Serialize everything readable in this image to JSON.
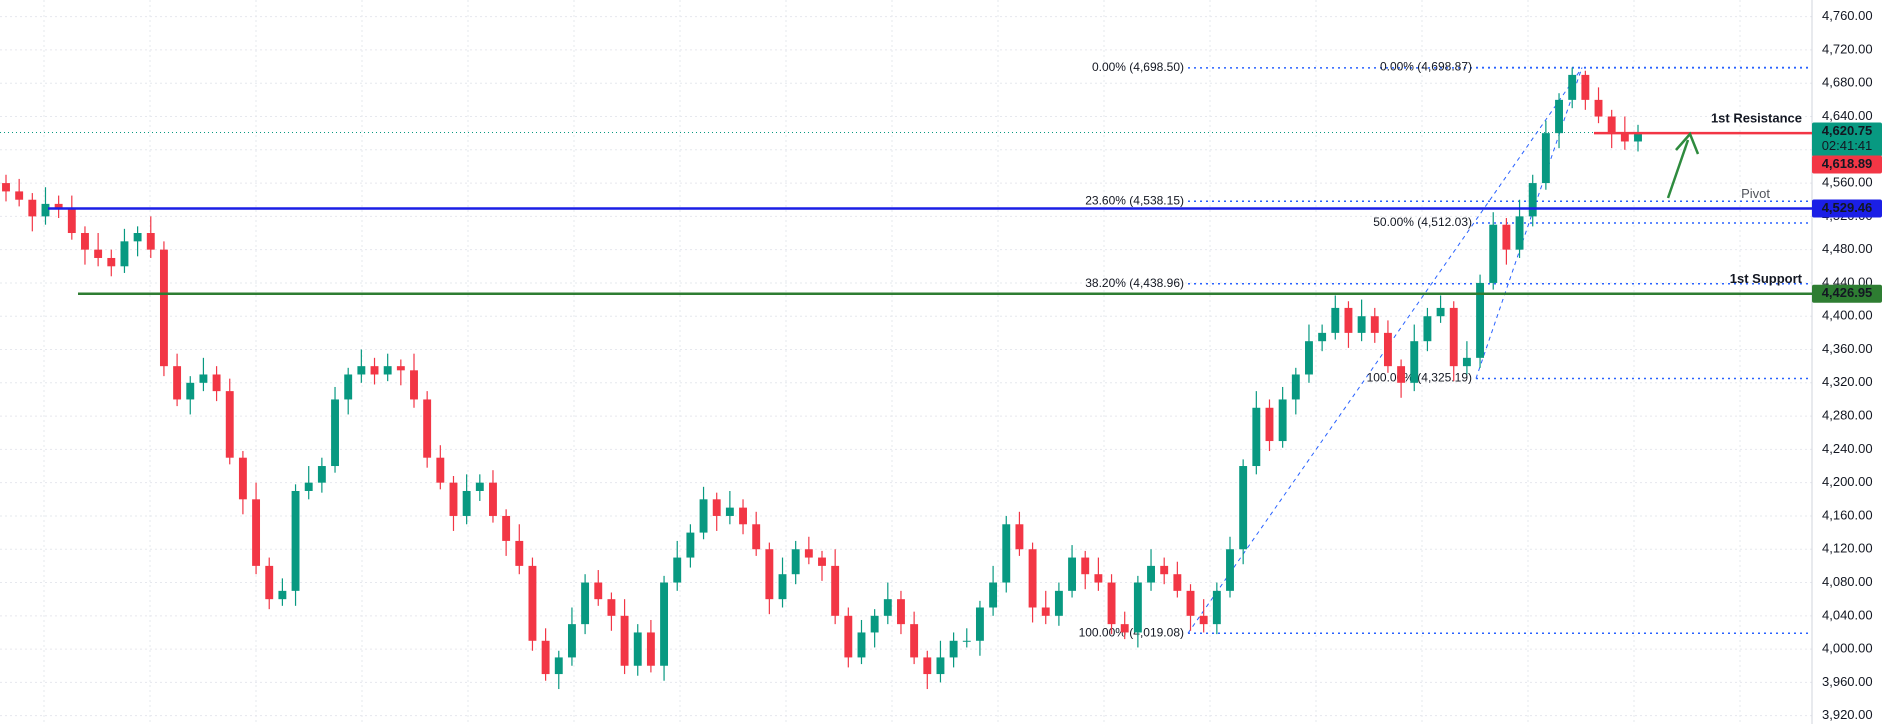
{
  "chart_data": {
    "type": "candlestick",
    "up_color": "#089981",
    "down_color": "#f23645",
    "open": [
      4560,
      4550,
      4540,
      4520,
      4535,
      4530,
      4500,
      4480,
      4470,
      4460,
      4490,
      4500,
      4480,
      4340,
      4300,
      4320,
      4330,
      4310,
      4230,
      4180,
      4100,
      4060,
      4070,
      4190,
      4200,
      4220,
      4300,
      4330,
      4340,
      4330,
      4340,
      4335,
      4300,
      4230,
      4200,
      4160,
      4190,
      4200,
      4160,
      4130,
      4100,
      4010,
      3970,
      3990,
      4030,
      4080,
      4060,
      4040,
      3980,
      4020,
      3980,
      4080,
      4110,
      4140,
      4180,
      4160,
      4170,
      4150,
      4120,
      4060,
      4090,
      4120,
      4110,
      4100,
      4040,
      3990,
      4020,
      4040,
      4060,
      4030,
      3990,
      3970,
      3990,
      4010,
      4010,
      4050,
      4080,
      4150,
      4120,
      4050,
      4040,
      4070,
      4110,
      4090,
      4080,
      4030,
      4020,
      4080,
      4100,
      4090,
      4070,
      4040,
      4030,
      4070,
      4120,
      4220,
      4290,
      4250,
      4300,
      4330,
      4370,
      4380,
      4410,
      4380,
      4400,
      4380,
      4340,
      4320,
      4370,
      4400,
      4410,
      4340,
      4350,
      4440,
      4510,
      4480,
      4520,
      4560,
      4620,
      4660,
      4690,
      4660,
      4640,
      4620,
      4610
    ],
    "high": [
      4570,
      4565,
      4548,
      4555,
      4545,
      4545,
      4508,
      4500,
      4480,
      4505,
      4508,
      4520,
      4490,
      4355,
      4328,
      4350,
      4340,
      4325,
      4238,
      4200,
      4110,
      4085,
      4198,
      4220,
      4230,
      4315,
      4338,
      4360,
      4350,
      4355,
      4348,
      4355,
      4310,
      4245,
      4208,
      4210,
      4210,
      4215,
      4168,
      4150,
      4110,
      4025,
      3998,
      4050,
      4090,
      4095,
      4068,
      4060,
      4030,
      4035,
      4088,
      4130,
      4150,
      4195,
      4188,
      4190,
      4180,
      4165,
      4128,
      4110,
      4130,
      4135,
      4118,
      4120,
      4050,
      4035,
      4048,
      4080,
      4070,
      4045,
      3998,
      4010,
      4020,
      4025,
      4058,
      4100,
      4160,
      4165,
      4128,
      4070,
      4080,
      4125,
      4118,
      4110,
      4090,
      4045,
      4088,
      4120,
      4110,
      4105,
      4078,
      4060,
      4080,
      4135,
      4228,
      4310,
      4300,
      4315,
      4338,
      4390,
      4390,
      4425,
      4418,
      4420,
      4410,
      4395,
      4348,
      4390,
      4410,
      4425,
      4418,
      4370,
      4450,
      4525,
      4518,
      4540,
      4570,
      4635,
      4668,
      4698.87,
      4695,
      4675,
      4648,
      4640,
      4630
    ],
    "low": [
      4538,
      4532,
      4502,
      4510,
      4518,
      4492,
      4462,
      4460,
      4448,
      4452,
      4472,
      4470,
      4328,
      4292,
      4282,
      4310,
      4298,
      4222,
      4162,
      4090,
      4048,
      4052,
      4052,
      4180,
      4188,
      4212,
      4282,
      4320,
      4318,
      4322,
      4317,
      4290,
      4218,
      4192,
      4142,
      4150,
      4178,
      4152,
      4112,
      4090,
      3998,
      3962,
      3952,
      3980,
      4018,
      4052,
      4022,
      3970,
      3968,
      3972,
      3962,
      4070,
      4098,
      4132,
      4142,
      4150,
      4138,
      4112,
      4042,
      4050,
      4078,
      4102,
      4082,
      4030,
      3978,
      3982,
      4002,
      4030,
      4018,
      3982,
      3952,
      3960,
      3978,
      4002,
      3992,
      4040,
      4068,
      4112,
      4032,
      4030,
      4028,
      4062,
      4072,
      4070,
      4018,
      4012,
      4002,
      4070,
      4078,
      4062,
      4022,
      4020,
      4018,
      4062,
      4102,
      4210,
      4238,
      4242,
      4282,
      4320,
      4358,
      4372,
      4362,
      4370,
      4368,
      4332,
      4302,
      4310,
      4358,
      4392,
      4322,
      4330,
      4338,
      4432,
      4462,
      4470,
      4508,
      4552,
      4602,
      4650,
      4648,
      4632,
      4602,
      4600,
      4598
    ],
    "close": [
      4550,
      4540,
      4520,
      4535,
      4530,
      4500,
      4480,
      4470,
      4460,
      4490,
      4500,
      4480,
      4340,
      4300,
      4320,
      4330,
      4310,
      4230,
      4180,
      4100,
      4060,
      4070,
      4190,
      4200,
      4220,
      4300,
      4330,
      4340,
      4330,
      4340,
      4335,
      4300,
      4230,
      4200,
      4160,
      4190,
      4200,
      4160,
      4130,
      4100,
      4010,
      3970,
      3990,
      4030,
      4080,
      4060,
      4040,
      3980,
      4020,
      3980,
      4080,
      4110,
      4140,
      4180,
      4160,
      4170,
      4150,
      4120,
      4060,
      4090,
      4120,
      4110,
      4100,
      4040,
      3990,
      4020,
      4040,
      4060,
      4030,
      3990,
      3970,
      3990,
      4010,
      4010,
      4050,
      4080,
      4150,
      4120,
      4050,
      4040,
      4070,
      4110,
      4090,
      4080,
      4030,
      4020,
      4080,
      4100,
      4090,
      4070,
      4040,
      4030,
      4070,
      4120,
      4220,
      4290,
      4250,
      4300,
      4330,
      4370,
      4380,
      4410,
      4380,
      4400,
      4380,
      4340,
      4320,
      4370,
      4400,
      4410,
      4340,
      4350,
      4440,
      4510,
      4480,
      4520,
      4560,
      4620,
      4660,
      4690,
      4660,
      4640,
      4620,
      4610,
      4620.75
    ],
    "ylim": [
      3910,
      4780
    ],
    "yticks": [
      {
        "value": 3920,
        "label": "3,920.00"
      },
      {
        "value": 3960,
        "label": "3,960.00"
      },
      {
        "value": 4000,
        "label": "4,000.00"
      },
      {
        "value": 4040,
        "label": "4,040.00"
      },
      {
        "value": 4080,
        "label": "4,080.00"
      },
      {
        "value": 4120,
        "label": "4,120.00"
      },
      {
        "value": 4160,
        "label": "4,160.00"
      },
      {
        "value": 4200,
        "label": "4,200.00"
      },
      {
        "value": 4240,
        "label": "4,240.00"
      },
      {
        "value": 4280,
        "label": "4,280.00"
      },
      {
        "value": 4320,
        "label": "4,320.00"
      },
      {
        "value": 4360,
        "label": "4,360.00"
      },
      {
        "value": 4400,
        "label": "4,400.00"
      },
      {
        "value": 4440,
        "label": "4,440.00"
      },
      {
        "value": 4480,
        "label": "4,480.00"
      },
      {
        "value": 4520,
        "label": "4,520.00"
      },
      {
        "value": 4560,
        "label": "4,560.00"
      },
      {
        "value": 4600,
        "label": "4,600.00"
      },
      {
        "value": 4640,
        "label": "4,640.00"
      },
      {
        "value": 4680,
        "label": "4,680.00"
      },
      {
        "value": 4720,
        "label": "4,720.00"
      },
      {
        "value": 4760,
        "label": "4,760.00"
      }
    ],
    "grid": true,
    "last_price": {
      "value": 4620.75,
      "label": "4,620.75",
      "countdown": "02:41:41",
      "color": "#089981"
    },
    "second_price": {
      "value": 4618.89,
      "label": "4,618.89",
      "color": "#f23645"
    },
    "levels": [
      {
        "name": "1st Resistance",
        "value": 4620,
        "color": "#f23645"
      },
      {
        "name": "Pivot",
        "value": 4529.46,
        "label": "4,529.46",
        "color": "#1b1fe6"
      },
      {
        "name": "1st Support",
        "value": 4426.95,
        "label": "4,426.95",
        "color": "#2e7d32"
      }
    ],
    "fibs": [
      {
        "color": "#2962ff",
        "levels": [
          {
            "value": 4698.5,
            "label": "0.00% (4,698.50)"
          },
          {
            "value": 4538.15,
            "label": "23.60% (4,538.15)"
          },
          {
            "value": 4438.96,
            "label": "38.20% (4,438.96)"
          },
          {
            "value": 4019.08,
            "label": "100.00% (4,019.08)"
          }
        ]
      },
      {
        "color": "#2962ff",
        "levels": [
          {
            "value": 4698.87,
            "label": "0.00% (4,698.87)"
          },
          {
            "value": 4512.03,
            "label": "50.00% (4,512.03)"
          },
          {
            "value": 4325.19,
            "label": "100.00% (4,325.19)"
          }
        ]
      }
    ]
  }
}
